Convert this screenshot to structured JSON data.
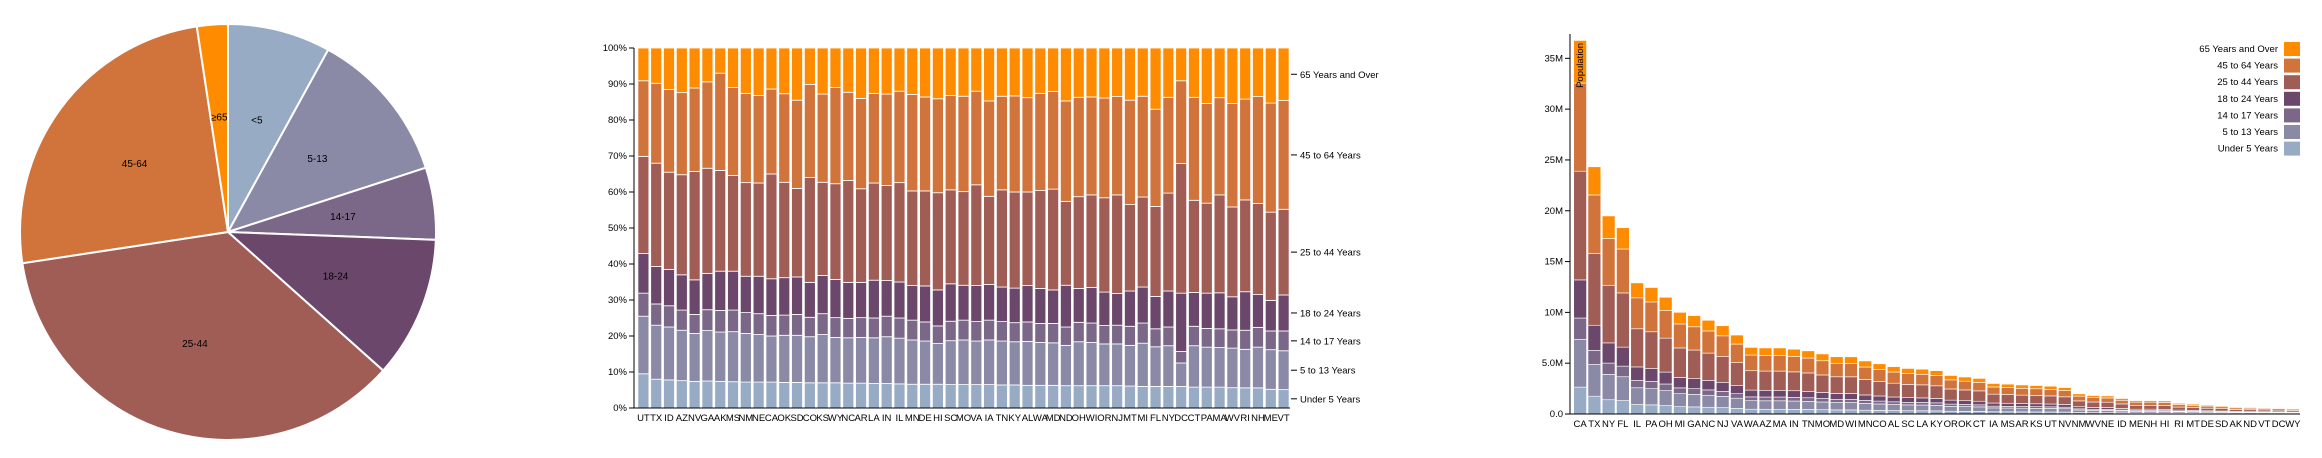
{
  "colors": {
    "Under 5 Years": "#98abc5",
    "5 to 13 Years": "#8a89a6",
    "14 to 17 Years": "#7b6888",
    "18 to 24 Years": "#6b486b",
    "25 to 44 Years": "#a05d56",
    "45 to 64 Years": "#d0743c",
    "65 Years and Over": "#ff8c00"
  },
  "chart_data": [
    {
      "type": "pie",
      "title": "",
      "labels": [
        "<5",
        "5-13",
        "14-17",
        "18-24",
        "25-44",
        "45-64",
        "≥65"
      ],
      "values": [
        8.0,
        12.0,
        5.6,
        11.0,
        36.0,
        25.0,
        2.4
      ]
    },
    {
      "type": "bar",
      "stacked": "normalized",
      "title": "",
      "y_ticks": [
        "0%",
        "10%",
        "20%",
        "30%",
        "40%",
        "50%",
        "60%",
        "70%",
        "80%",
        "90%",
        "100%"
      ],
      "ylim": [
        0,
        1
      ],
      "series_order": [
        "Under 5 Years",
        "5 to 13 Years",
        "14 to 17 Years",
        "18 to 24 Years",
        "25 to 44 Years",
        "45 to 64 Years",
        "65 Years and Over"
      ],
      "categories": [
        "UT",
        "TX",
        "ID",
        "AZ",
        "NV",
        "GA",
        "AK",
        "MS",
        "NM",
        "NE",
        "CA",
        "OK",
        "SD",
        "CO",
        "KS",
        "WY",
        "NC",
        "AR",
        "LA",
        "IN",
        "IL",
        "MN",
        "DE",
        "HI",
        "SC",
        "MO",
        "VA",
        "IA",
        "TN",
        "KY",
        "AL",
        "WA",
        "MD",
        "ND",
        "OH",
        "WI",
        "OR",
        "NJ",
        "MT",
        "MI",
        "FL",
        "NY",
        "DC",
        "CT",
        "PA",
        "MA",
        "WV",
        "RI",
        "NH",
        "ME",
        "VT"
      ],
      "shares": [
        [
          0.095,
          0.16,
          0.064,
          0.11,
          0.27,
          0.21,
          0.091
        ],
        [
          0.08,
          0.15,
          0.059,
          0.104,
          0.287,
          0.222,
          0.098
        ],
        [
          0.078,
          0.147,
          0.059,
          0.101,
          0.27,
          0.23,
          0.115
        ],
        [
          0.076,
          0.14,
          0.056,
          0.098,
          0.278,
          0.228,
          0.124
        ],
        [
          0.074,
          0.133,
          0.053,
          0.096,
          0.301,
          0.232,
          0.111
        ],
        [
          0.075,
          0.14,
          0.058,
          0.101,
          0.292,
          0.24,
          0.094
        ],
        [
          0.074,
          0.137,
          0.06,
          0.109,
          0.28,
          0.27,
          0.07
        ],
        [
          0.073,
          0.139,
          0.06,
          0.108,
          0.266,
          0.244,
          0.11
        ],
        [
          0.072,
          0.135,
          0.058,
          0.101,
          0.26,
          0.248,
          0.126
        ],
        [
          0.072,
          0.132,
          0.058,
          0.104,
          0.259,
          0.243,
          0.132
        ],
        [
          0.072,
          0.128,
          0.057,
          0.102,
          0.291,
          0.236,
          0.114
        ],
        [
          0.071,
          0.131,
          0.056,
          0.104,
          0.265,
          0.246,
          0.127
        ],
        [
          0.071,
          0.131,
          0.058,
          0.104,
          0.246,
          0.245,
          0.145
        ],
        [
          0.07,
          0.128,
          0.054,
          0.097,
          0.291,
          0.259,
          0.101
        ],
        [
          0.07,
          0.134,
          0.058,
          0.106,
          0.259,
          0.245,
          0.128
        ],
        [
          0.07,
          0.126,
          0.055,
          0.106,
          0.266,
          0.267,
          0.11
        ],
        [
          0.069,
          0.126,
          0.054,
          0.1,
          0.283,
          0.245,
          0.123
        ],
        [
          0.069,
          0.127,
          0.055,
          0.098,
          0.26,
          0.251,
          0.14
        ],
        [
          0.068,
          0.127,
          0.055,
          0.105,
          0.27,
          0.249,
          0.126
        ],
        [
          0.068,
          0.13,
          0.057,
          0.099,
          0.264,
          0.254,
          0.128
        ],
        [
          0.067,
          0.127,
          0.056,
          0.1,
          0.276,
          0.254,
          0.12
        ],
        [
          0.066,
          0.123,
          0.055,
          0.096,
          0.263,
          0.268,
          0.129
        ],
        [
          0.066,
          0.12,
          0.053,
          0.1,
          0.264,
          0.261,
          0.136
        ],
        [
          0.066,
          0.113,
          0.049,
          0.1,
          0.27,
          0.261,
          0.141
        ],
        [
          0.065,
          0.122,
          0.054,
          0.104,
          0.261,
          0.262,
          0.132
        ],
        [
          0.065,
          0.124,
          0.055,
          0.097,
          0.26,
          0.265,
          0.134
        ],
        [
          0.065,
          0.121,
          0.054,
          0.1,
          0.28,
          0.26,
          0.12
        ],
        [
          0.065,
          0.124,
          0.055,
          0.099,
          0.245,
          0.265,
          0.147
        ],
        [
          0.064,
          0.122,
          0.054,
          0.096,
          0.27,
          0.26,
          0.134
        ],
        [
          0.064,
          0.12,
          0.053,
          0.096,
          0.267,
          0.267,
          0.133
        ],
        [
          0.063,
          0.122,
          0.054,
          0.101,
          0.26,
          0.262,
          0.138
        ],
        [
          0.063,
          0.119,
          0.053,
          0.097,
          0.272,
          0.27,
          0.126
        ],
        [
          0.063,
          0.118,
          0.054,
          0.093,
          0.28,
          0.271,
          0.121
        ],
        [
          0.062,
          0.112,
          0.051,
          0.116,
          0.233,
          0.279,
          0.147
        ],
        [
          0.062,
          0.122,
          0.054,
          0.094,
          0.255,
          0.276,
          0.137
        ],
        [
          0.062,
          0.12,
          0.054,
          0.099,
          0.257,
          0.272,
          0.136
        ],
        [
          0.062,
          0.116,
          0.051,
          0.093,
          0.262,
          0.277,
          0.139
        ],
        [
          0.062,
          0.116,
          0.052,
          0.088,
          0.274,
          0.273,
          0.135
        ],
        [
          0.061,
          0.113,
          0.053,
          0.098,
          0.24,
          0.29,
          0.145
        ],
        [
          0.06,
          0.12,
          0.056,
          0.1,
          0.25,
          0.28,
          0.134
        ],
        [
          0.06,
          0.11,
          0.05,
          0.09,
          0.25,
          0.27,
          0.17
        ],
        [
          0.06,
          0.113,
          0.052,
          0.1,
          0.272,
          0.266,
          0.137
        ],
        [
          0.06,
          0.065,
          0.032,
          0.162,
          0.36,
          0.23,
          0.091
        ],
        [
          0.058,
          0.115,
          0.054,
          0.094,
          0.256,
          0.286,
          0.137
        ],
        [
          0.058,
          0.111,
          0.052,
          0.098,
          0.25,
          0.277,
          0.154
        ],
        [
          0.058,
          0.11,
          0.052,
          0.1,
          0.272,
          0.27,
          0.138
        ],
        [
          0.057,
          0.111,
          0.051,
          0.093,
          0.252,
          0.29,
          0.156
        ],
        [
          0.056,
          0.107,
          0.053,
          0.107,
          0.255,
          0.28,
          0.142
        ],
        [
          0.056,
          0.113,
          0.055,
          0.091,
          0.253,
          0.297,
          0.135
        ],
        [
          0.052,
          0.11,
          0.052,
          0.085,
          0.245,
          0.303,
          0.153
        ],
        [
          0.051,
          0.108,
          0.055,
          0.1,
          0.238,
          0.302,
          0.146
        ]
      ]
    },
    {
      "type": "bar",
      "stacked": "absolute",
      "title": "",
      "ylabel": "Population",
      "y_ticks": [
        {
          "value": 0,
          "label": "0.0"
        },
        {
          "value": 5000000,
          "label": "5.0M"
        },
        {
          "value": 10000000,
          "label": "10M"
        },
        {
          "value": 15000000,
          "label": "15M"
        },
        {
          "value": 20000000,
          "label": "20M"
        },
        {
          "value": 25000000,
          "label": "25M"
        },
        {
          "value": 30000000,
          "label": "30M"
        },
        {
          "value": 35000000,
          "label": "35M"
        }
      ],
      "ylim": [
        0,
        37000000
      ],
      "series_order": [
        "Under 5 Years",
        "5 to 13 Years",
        "14 to 17 Years",
        "18 to 24 Years",
        "25 to 44 Years",
        "45 to 64 Years",
        "65 Years and Over"
      ],
      "legend": [
        "65 Years and Over",
        "45 to 64 Years",
        "25 to 44 Years",
        "18 to 24 Years",
        "14 to 17 Years",
        "5 to 13 Years",
        "Under 5 Years"
      ],
      "legend_position": "top-right",
      "categories": [
        "CA",
        "TX",
        "NY",
        "FL",
        "IL",
        "PA",
        "OH",
        "MI",
        "GA",
        "NC",
        "NJ",
        "VA",
        "WA",
        "AZ",
        "MA",
        "IN",
        "TN",
        "MO",
        "MD",
        "WI",
        "MN",
        "CO",
        "AL",
        "SC",
        "LA",
        "KY",
        "OR",
        "OK",
        "CT",
        "IA",
        "MS",
        "AR",
        "KS",
        "UT",
        "NV",
        "NM",
        "WV",
        "NE",
        "ID",
        "ME",
        "NH",
        "HI",
        "RI",
        "MT",
        "DE",
        "SD",
        "AK",
        "ND",
        "VT",
        "DC",
        "WY"
      ],
      "totals": [
        36756666,
        24326974,
        19490297,
        18328340,
        12901563,
        12448279,
        11485910,
        10003422,
        9685744,
        9222414,
        8682661,
        7769089,
        6549224,
        6500180,
        6497967,
        6376792,
        6214888,
        5911605,
        5633597,
        5627967,
        5220393,
        4939456,
        4661900,
        4479800,
        4410796,
        4269245,
        3790060,
        3642361,
        3501252,
        3002555,
        2938618,
        2855390,
        2802134,
        2736424,
        2600167,
        1984356,
        1814468,
        1783432,
        1523816,
        1316456,
        1315809,
        1288198,
        1050788,
        967440,
        873092,
        804194,
        686293,
        641481,
        621270,
        591833,
        532668
      ],
      "age_template": [
        0.072,
        0.128,
        0.057,
        0.102,
        0.291,
        0.236,
        0.114
      ]
    }
  ]
}
